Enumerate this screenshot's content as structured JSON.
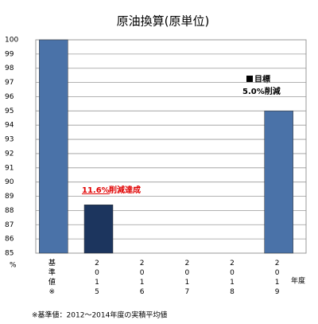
{
  "chart_data": {
    "type": "bar",
    "title": "原油換算(原単位)",
    "y_unit": "%",
    "x_unit": "年度",
    "categories": [
      "基準値※",
      "2015",
      "2016",
      "2017",
      "2018",
      "2019"
    ],
    "values": [
      100,
      88.4,
      null,
      null,
      null,
      95
    ],
    "colors": [
      "#4a72a8",
      "#1c355e",
      "#4a72a8",
      "#4a72a8",
      "#4a72a8",
      "#4a72a8"
    ],
    "ylim": [
      85,
      100
    ],
    "yticks": [
      85,
      86,
      87,
      88,
      89,
      90,
      91,
      92,
      93,
      94,
      95,
      96,
      97,
      98,
      99,
      100
    ],
    "grid": true,
    "reduction_percent": "11.6%",
    "reduction_text": "削減達成",
    "target_label": "目標",
    "target_text": "5.0%削減",
    "footnote": "※基準値：2012～2014年度の実積平均値"
  }
}
